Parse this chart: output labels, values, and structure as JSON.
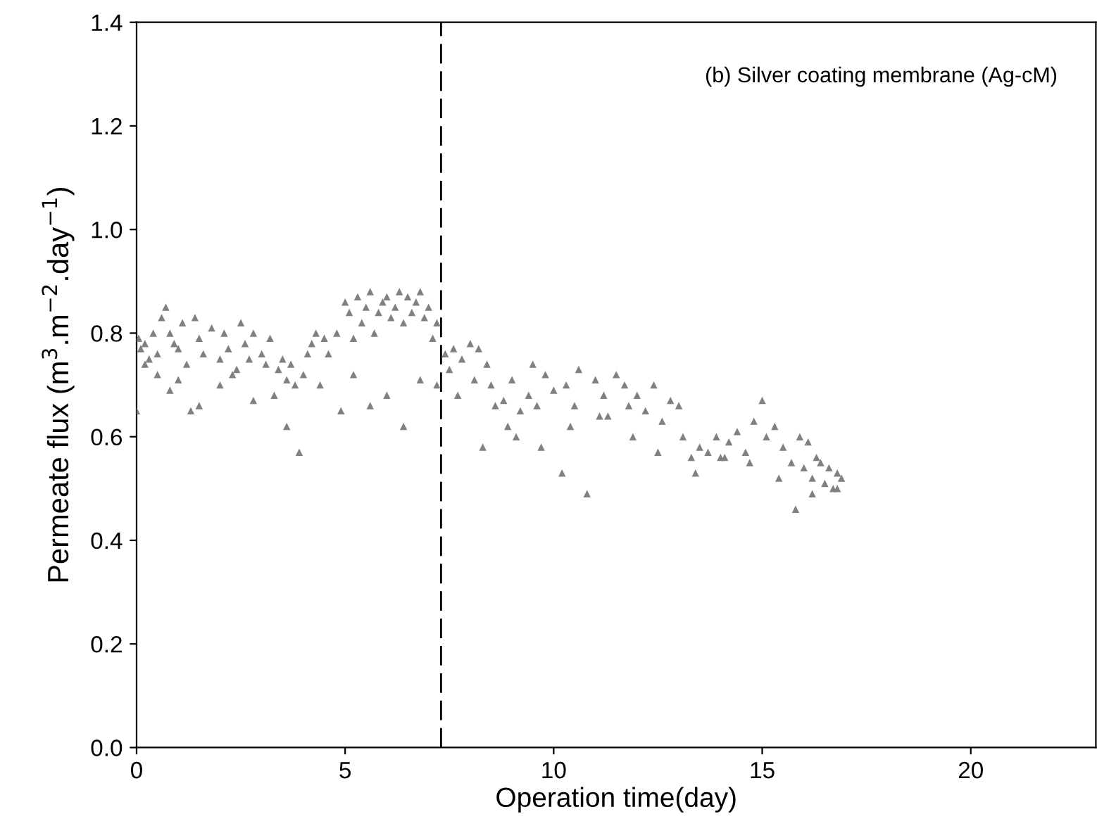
{
  "chart_data": {
    "type": "scatter",
    "xlabel": "Operation time(day)",
    "ylabel": "Permeate flux (m$^{3}$.m$^{−2}$.day$^{−1}$)",
    "annotations": [
      "(b) Silver coating membrane (Ag-cM)"
    ],
    "xlim": [
      0,
      23
    ],
    "ylim": [
      0,
      1.4
    ],
    "xticks": [
      0,
      5,
      10,
      15,
      20
    ],
    "yticks": [
      {
        "value": 0,
        "label": "0.0"
      },
      0.2,
      0.4,
      0.6,
      0.8,
      {
        "value": 1,
        "label": "1.0"
      },
      1.2,
      1.4
    ],
    "marker": "triangle",
    "grid": false,
    "ref_lines": [
      {
        "axis": "x",
        "value": 7.3,
        "color": "#000000",
        "line_style": "dashed"
      }
    ],
    "series": [
      {
        "color": "#808080",
        "x": [
          0,
          0.05,
          0.1,
          0.2,
          0.3,
          0.4,
          0.5,
          0.6,
          0.7,
          0.8,
          0.9,
          1.0,
          1.1,
          1.2,
          1.3,
          1.4,
          1.5,
          1.6,
          1.8,
          2.0,
          2.1,
          2.2,
          2.3,
          2.5,
          2.6,
          2.7,
          2.8,
          3.0,
          3.1,
          3.2,
          3.4,
          3.5,
          3.6,
          3.7,
          3.8,
          3.9,
          4.0,
          4.1,
          4.2,
          4.3,
          4.5,
          4.6,
          4.8,
          5.0,
          5.1,
          5.2,
          5.3,
          5.4,
          5.5,
          5.6,
          5.7,
          5.8,
          5.9,
          6.0,
          6.1,
          6.2,
          6.3,
          6.4,
          6.5,
          6.6,
          6.7,
          6.8,
          6.9,
          7.0,
          7.1,
          7.2,
          7.4,
          7.5,
          7.6,
          7.8,
          8.0,
          8.1,
          8.2,
          8.4,
          8.5,
          8.6,
          8.8,
          8.9,
          9.0,
          9.2,
          9.4,
          9.5,
          9.6,
          9.8,
          10.0,
          10.2,
          10.3,
          10.5,
          10.6,
          10.8,
          11.0,
          11.2,
          11.3,
          11.5,
          11.7,
          11.8,
          12.0,
          12.2,
          12.4,
          12.6,
          12.8,
          13.0,
          13.1,
          13.3,
          13.5,
          13.7,
          13.9,
          14.0,
          14.2,
          14.4,
          14.6,
          14.8,
          15.0,
          15.1,
          15.3,
          15.5,
          15.7,
          15.8,
          15.9,
          16.0,
          16.1,
          16.2,
          16.3,
          16.4,
          16.5,
          16.6,
          16.7,
          16.8,
          16.9,
          0.2,
          0.5,
          0.8,
          1.0,
          1.5,
          2.0,
          2.4,
          2.8,
          3.3,
          3.6,
          4.4,
          4.9,
          5.2,
          5.6,
          6.0,
          6.4,
          6.8,
          7.2,
          7.7,
          8.3,
          9.1,
          9.7,
          10.4,
          11.1,
          11.9,
          12.5,
          13.4,
          14.1,
          14.7,
          15.4,
          16.2,
          16.8
        ],
        "values": [
          0.65,
          0.79,
          0.77,
          0.78,
          0.75,
          0.8,
          0.76,
          0.83,
          0.85,
          0.8,
          0.78,
          0.77,
          0.82,
          0.74,
          0.65,
          0.83,
          0.79,
          0.76,
          0.81,
          0.75,
          0.8,
          0.77,
          0.72,
          0.82,
          0.78,
          0.75,
          0.8,
          0.76,
          0.74,
          0.79,
          0.73,
          0.75,
          0.71,
          0.74,
          0.7,
          0.57,
          0.72,
          0.76,
          0.78,
          0.8,
          0.79,
          0.76,
          0.8,
          0.86,
          0.84,
          0.79,
          0.87,
          0.82,
          0.85,
          0.88,
          0.8,
          0.84,
          0.86,
          0.87,
          0.83,
          0.85,
          0.88,
          0.82,
          0.87,
          0.84,
          0.86,
          0.88,
          0.83,
          0.85,
          0.79,
          0.82,
          0.76,
          0.73,
          0.77,
          0.75,
          0.78,
          0.71,
          0.77,
          0.74,
          0.7,
          0.66,
          0.67,
          0.62,
          0.71,
          0.65,
          0.68,
          0.74,
          0.66,
          0.72,
          0.69,
          0.53,
          0.7,
          0.66,
          0.73,
          0.49,
          0.71,
          0.68,
          0.64,
          0.72,
          0.7,
          0.66,
          0.68,
          0.65,
          0.7,
          0.63,
          0.67,
          0.66,
          0.6,
          0.56,
          0.58,
          0.57,
          0.6,
          0.56,
          0.59,
          0.61,
          0.57,
          0.63,
          0.67,
          0.6,
          0.62,
          0.58,
          0.55,
          0.46,
          0.6,
          0.54,
          0.59,
          0.52,
          0.56,
          0.55,
          0.51,
          0.54,
          0.5,
          0.53,
          0.52,
          0.74,
          0.72,
          0.69,
          0.71,
          0.66,
          0.7,
          0.73,
          0.67,
          0.68,
          0.62,
          0.7,
          0.65,
          0.72,
          0.66,
          0.68,
          0.62,
          0.71,
          0.7,
          0.68,
          0.58,
          0.6,
          0.58,
          0.62,
          0.64,
          0.6,
          0.57,
          0.53,
          0.56,
          0.55,
          0.52,
          0.49,
          0.5
        ]
      }
    ]
  }
}
